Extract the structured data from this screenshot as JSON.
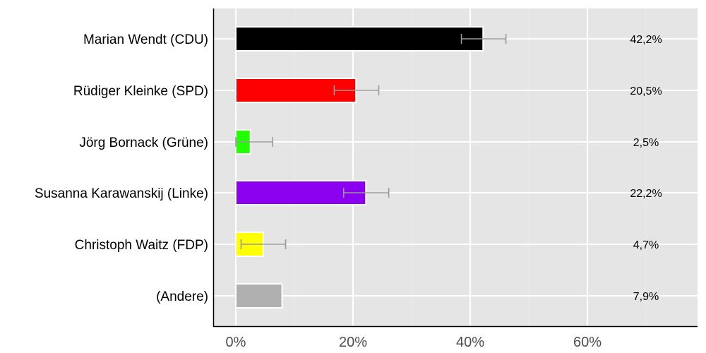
{
  "chart_data": {
    "type": "bar",
    "orientation": "horizontal",
    "title": "",
    "xlabel": "",
    "ylabel": "",
    "xlim": [
      -4,
      78
    ],
    "x_ticks": [
      "0%",
      "20%",
      "40%",
      "60%"
    ],
    "x_tick_values": [
      0,
      20,
      40,
      60
    ],
    "grid": true,
    "legend": null,
    "categories": [
      "Marian Wendt (CDU)",
      "Rüdiger Kleinke (SPD)",
      "Jörg Bornack (Grüne)",
      "Susanna Karawanskij (Linke)",
      "Christoph Waitz (FDP)",
      "(Andere)"
    ],
    "values": [
      42.2,
      20.5,
      2.5,
      22.2,
      4.7,
      7.9
    ],
    "value_labels": [
      "42,2%",
      "20,5%",
      "2,5%",
      "22,2%",
      "4,7%",
      "7,9%"
    ],
    "colors": [
      "#000000",
      "#ff0000",
      "#22ff00",
      "#8b00ee",
      "#ffff00",
      "#b0b0b0"
    ],
    "error_bars": [
      [
        38.5,
        46.1
      ],
      [
        16.8,
        24.4
      ],
      [
        0.0,
        6.3
      ],
      [
        18.4,
        26.1
      ],
      [
        0.9,
        8.5
      ],
      null
    ]
  },
  "style": {
    "panel_bg": "#e5e5e5",
    "grid_color": "#ffffff",
    "error_bar_color": "#999999",
    "axis_color": "#000000"
  }
}
